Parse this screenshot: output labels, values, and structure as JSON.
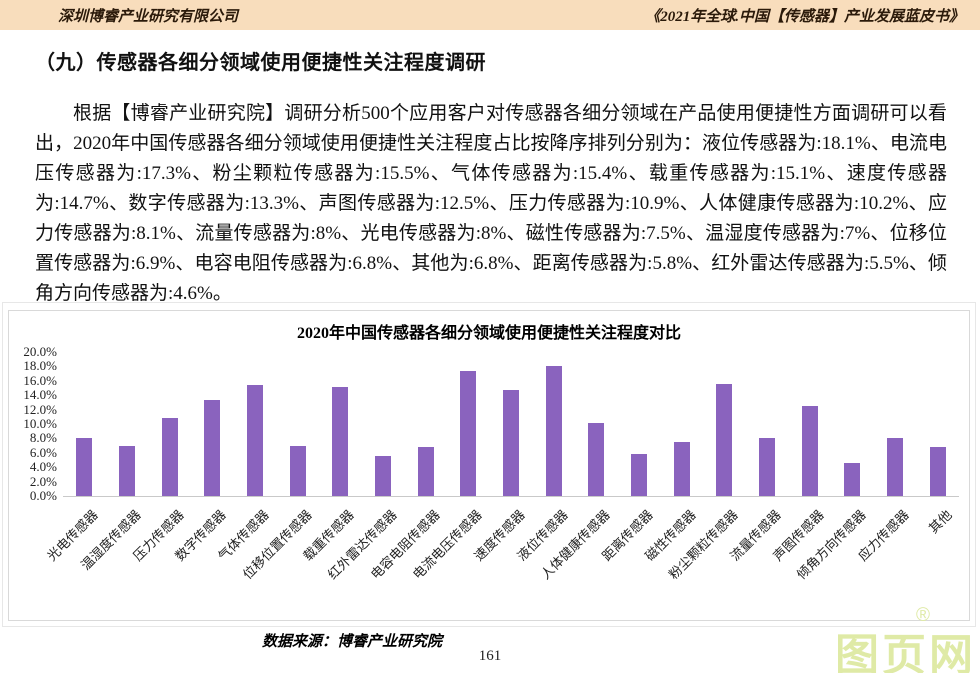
{
  "header": {
    "left": "深圳博睿产业研究有限公司",
    "right": "《2021年全球.中国【传感器】产业发展蓝皮书》",
    "band_color": "#f8ddbc"
  },
  "section": {
    "heading": "（九）传感器各细分领域使用便捷性关注程度调研",
    "paragraph": "根据【博睿产业研究院】调研分析500个应用客户对传感器各细分领域在产品使用便捷性方面调研可以看出，2020年中国传感器各细分领域使用便捷性关注程度占比按降序排列分别为：液位传感器为:18.1%、电流电压传感器为:17.3%、粉尘颗粒传感器为:15.5%、气体传感器为:15.4%、载重传感器为:15.1%、速度传感器为:14.7%、数字传感器为:13.3%、声图传感器为:12.5%、压力传感器为:10.9%、人体健康传感器为:10.2%、应力传感器为:8.1%、流量传感器为:8%、光电传感器为:8%、磁性传感器为:7.5%、温湿度传感器为:7%、位移位置传感器为:6.9%、电容电阻传感器为:6.8%、其他为:6.8%、距离传感器为:5.8%、红外雷达传感器为:5.5%、倾角方向传感器为:4.6%。"
  },
  "chart_data": {
    "type": "bar",
    "title": "2020年中国传感器各细分领域使用便捷性关注程度对比",
    "categories": [
      "光电传感器",
      "温湿度传感器",
      "压力传感器",
      "数字传感器",
      "气体传感器",
      "位移位置传感器",
      "载重传感器",
      "红外雷达传感器",
      "电容电阻传感器",
      "电流电压传感器",
      "速度传感器",
      "液位传感器",
      "人体健康传感器",
      "距离传感器",
      "磁性传感器",
      "粉尘颗粒传感器",
      "流量传感器",
      "声图传感器",
      "倾角方向传感器",
      "应力传感器",
      "其他"
    ],
    "values": [
      8,
      7,
      10.9,
      13.3,
      15.4,
      6.9,
      15.1,
      5.5,
      6.8,
      17.3,
      14.7,
      18.1,
      10.2,
      5.8,
      7.5,
      15.5,
      8,
      12.5,
      4.6,
      8.1,
      6.8
    ],
    "unit": "%",
    "xlabel": "",
    "ylabel": "",
    "ylim": [
      0,
      20
    ],
    "ytick_step": 2,
    "ytick_labels": [
      "0.0%",
      "2.0%",
      "4.0%",
      "6.0%",
      "8.0%",
      "10.0%",
      "12.0%",
      "14.0%",
      "16.0%",
      "18.0%",
      "20.0%"
    ],
    "bar_color": "#8a63be",
    "grid": false,
    "legend": false,
    "x_label_rotation_deg": -45
  },
  "footer": {
    "source": "数据来源：博睿产业研究院",
    "page_number": "161"
  },
  "watermark": {
    "text": "图页网",
    "reg": "®",
    "color": "#dfeaa6"
  }
}
